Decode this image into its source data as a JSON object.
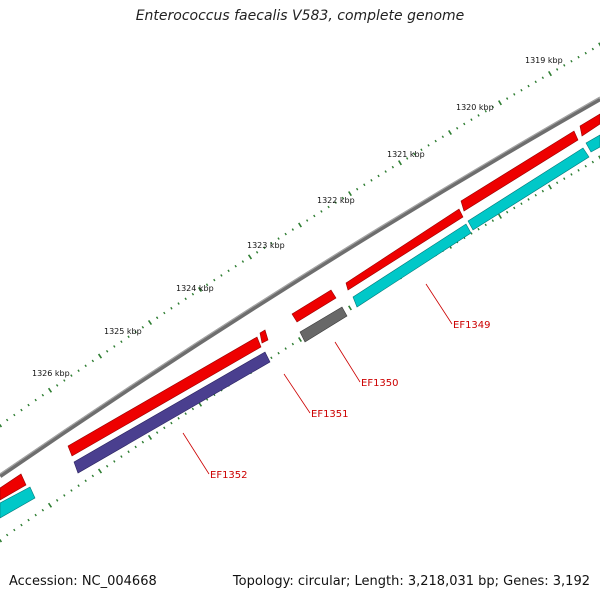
{
  "title": "Enterococcus faecalis V583, complete genome",
  "footer": {
    "accession": "Accession: NC_004668",
    "summary": "Topology: circular; Length: 3,218,031 bp; Genes: 3,192"
  },
  "ruler": [
    {
      "label": "1319 kbp"
    },
    {
      "label": "1320 kbp"
    },
    {
      "label": "1321 kbp"
    },
    {
      "label": "1322 kbp"
    },
    {
      "label": "1323 kbp"
    },
    {
      "label": "1324 kbp"
    },
    {
      "label": "1325 kbp"
    },
    {
      "label": "1326 kbp"
    }
  ],
  "gene_labels": [
    {
      "name": "EF1349"
    },
    {
      "name": "EF1350"
    },
    {
      "name": "EF1351"
    },
    {
      "name": "EF1352"
    }
  ],
  "colors": {
    "backbone": "#808080",
    "cds": "#ff0000",
    "rna_cyan": "#00cccc",
    "rna_navy": "#4a3f8f",
    "pseudo_gray": "#707070",
    "ruler_ticks": "#2e7d32",
    "label_red": "#cc0000"
  }
}
